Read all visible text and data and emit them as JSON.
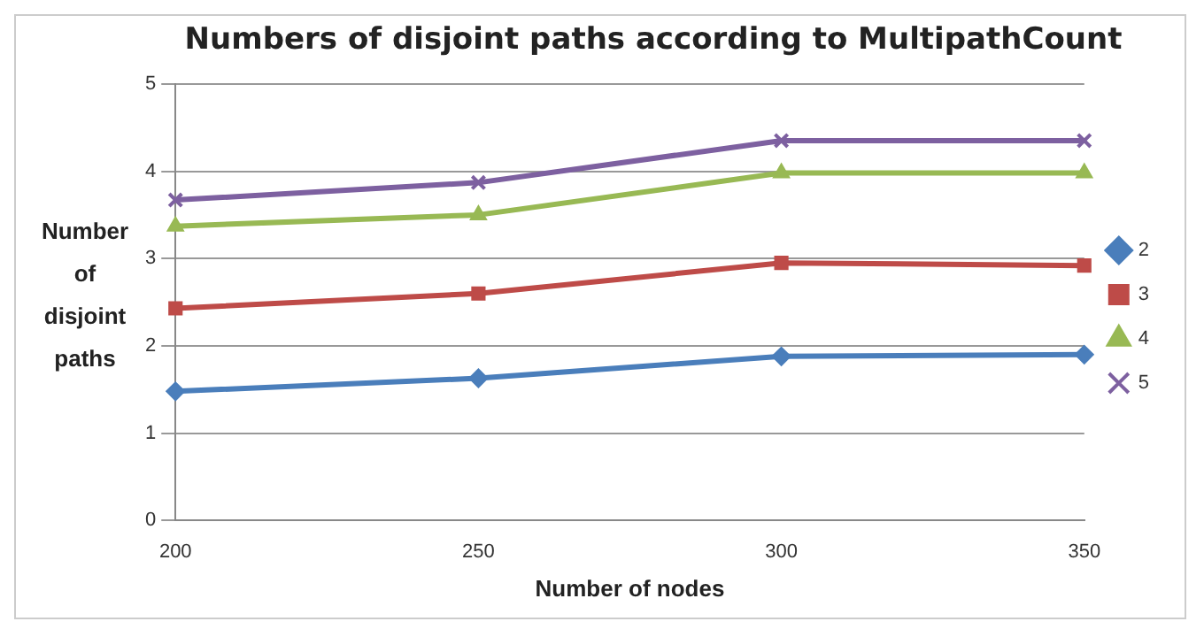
{
  "chart_data": {
    "type": "line",
    "title": "Numbers of disjoint paths according to MultipathCount",
    "xlabel": "Number of nodes",
    "ylabel": "Number of disjoint paths",
    "categories": [
      "200",
      "250",
      "300",
      "350"
    ],
    "series": [
      {
        "name": "2",
        "color": "#4a7ebb",
        "marker": "diamond",
        "values": [
          1.48,
          1.63,
          1.88,
          1.9
        ]
      },
      {
        "name": "3",
        "color": "#be4b48",
        "marker": "square",
        "values": [
          2.43,
          2.6,
          2.95,
          2.92
        ]
      },
      {
        "name": "4",
        "color": "#98b954",
        "marker": "triangle",
        "values": [
          3.37,
          3.5,
          3.98,
          3.98
        ]
      },
      {
        "name": "5",
        "color": "#7d60a0",
        "marker": "cross",
        "values": [
          3.67,
          3.87,
          4.35,
          4.35
        ]
      }
    ],
    "ylim": [
      0,
      5
    ],
    "yticks": [
      0,
      1,
      2,
      3,
      4,
      5
    ],
    "grid": "y",
    "legend": "right"
  }
}
